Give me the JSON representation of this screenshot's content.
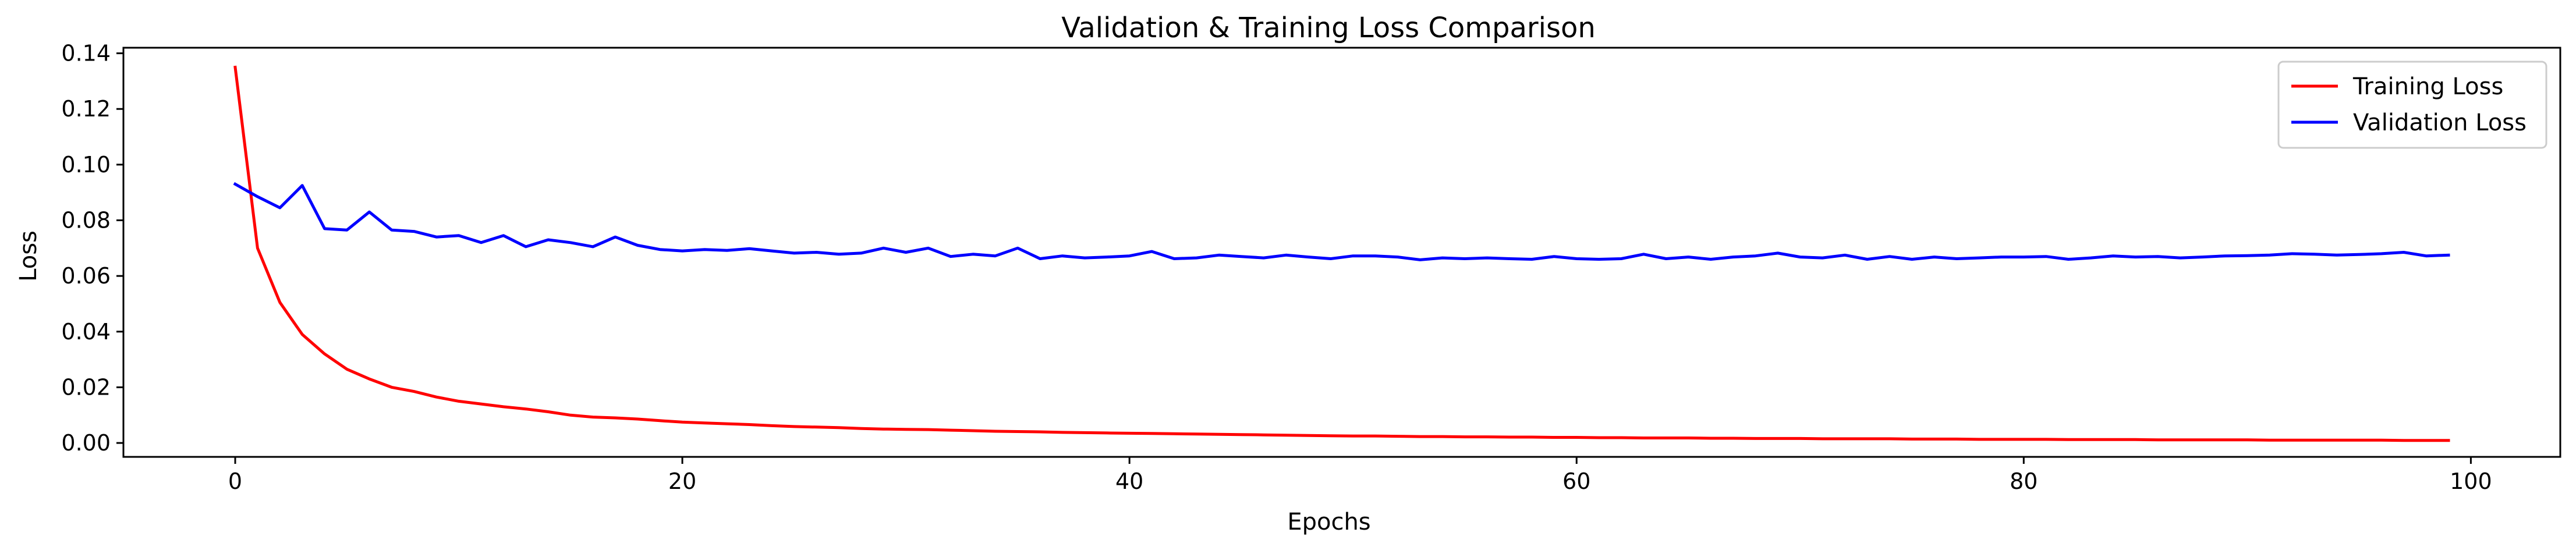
{
  "chart_data": {
    "type": "line",
    "title": "Validation & Training Loss Comparison",
    "xlabel": "Epochs",
    "ylabel": "Loss",
    "xlim": [
      -5,
      104
    ],
    "ylim": [
      -0.005,
      0.142
    ],
    "xticks": [
      0,
      20,
      40,
      60,
      80,
      100
    ],
    "xtick_labels": [
      "0",
      "20",
      "40",
      "60",
      "80",
      "100"
    ],
    "yticks": [
      0.0,
      0.02,
      0.04,
      0.06,
      0.08,
      0.1,
      0.12,
      0.14
    ],
    "ytick_labels": [
      "0.00",
      "0.02",
      "0.04",
      "0.06",
      "0.08",
      "0.10",
      "0.12",
      "0.14"
    ],
    "grid": false,
    "legend_position": "top-right",
    "series": [
      {
        "name": "Training Loss",
        "color": "#ff0000",
        "values": [
          0.135,
          0.07,
          0.0505,
          0.039,
          0.032,
          0.0265,
          0.023,
          0.02,
          0.0185,
          0.0165,
          0.015,
          0.014,
          0.013,
          0.0122,
          0.0112,
          0.01,
          0.0093,
          0.009,
          0.0086,
          0.008,
          0.0075,
          0.0072,
          0.0069,
          0.0066,
          0.0062,
          0.0059,
          0.0057,
          0.0055,
          0.0052,
          0.005,
          0.0049,
          0.0048,
          0.0046,
          0.0044,
          0.0042,
          0.0041,
          0.004,
          0.0038,
          0.0037,
          0.0036,
          0.0035,
          0.0034,
          0.0033,
          0.0032,
          0.0031,
          0.003,
          0.0029,
          0.0028,
          0.0027,
          0.0026,
          0.0025,
          0.0025,
          0.0024,
          0.0023,
          0.0023,
          0.0022,
          0.0022,
          0.0021,
          0.0021,
          0.002,
          0.002,
          0.0019,
          0.0019,
          0.0018,
          0.0018,
          0.0018,
          0.0017,
          0.0017,
          0.0016,
          0.0016,
          0.0016,
          0.0015,
          0.0015,
          0.0015,
          0.0015,
          0.0014,
          0.0014,
          0.0014,
          0.0013,
          0.0013,
          0.0013,
          0.0013,
          0.0012,
          0.0012,
          0.0012,
          0.0012,
          0.0011,
          0.0011,
          0.0011,
          0.0011,
          0.0011,
          0.001,
          0.001,
          0.001,
          0.001,
          0.001,
          0.001,
          0.0009,
          0.0009,
          0.0009
        ]
      },
      {
        "name": "Validation Loss",
        "color": "#0000ff",
        "values": [
          0.093,
          0.0885,
          0.0845,
          0.0925,
          0.077,
          0.0765,
          0.083,
          0.0765,
          0.076,
          0.074,
          0.0745,
          0.072,
          0.0745,
          0.0705,
          0.073,
          0.072,
          0.0705,
          0.074,
          0.071,
          0.0695,
          0.069,
          0.0695,
          0.0692,
          0.0698,
          0.069,
          0.0682,
          0.0685,
          0.0678,
          0.0682,
          0.07,
          0.0685,
          0.07,
          0.067,
          0.0678,
          0.0672,
          0.07,
          0.0662,
          0.0672,
          0.0665,
          0.0668,
          0.0672,
          0.0688,
          0.0662,
          0.0665,
          0.0675,
          0.067,
          0.0665,
          0.0675,
          0.0668,
          0.0662,
          0.0672,
          0.0672,
          0.0668,
          0.0658,
          0.0665,
          0.0662,
          0.0665,
          0.0662,
          0.066,
          0.067,
          0.0662,
          0.066,
          0.0662,
          0.0678,
          0.0662,
          0.0668,
          0.066,
          0.0668,
          0.0672,
          0.0682,
          0.0668,
          0.0665,
          0.0675,
          0.066,
          0.067,
          0.066,
          0.0668,
          0.0662,
          0.0665,
          0.0668,
          0.0668,
          0.067,
          0.066,
          0.0665,
          0.0672,
          0.0668,
          0.067,
          0.0665,
          0.0668,
          0.0672,
          0.0673,
          0.0675,
          0.068,
          0.0678,
          0.0675,
          0.0677,
          0.068,
          0.0685,
          0.0672,
          0.0675
        ]
      }
    ]
  }
}
